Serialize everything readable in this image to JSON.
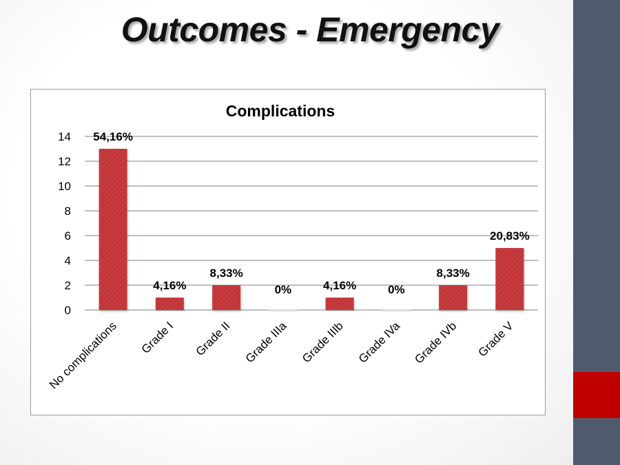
{
  "slide": {
    "title": "Outcomes - Emergency",
    "colors": {
      "sidebar": "#4f5b6d",
      "accent": "#c00000",
      "bar": "#c0393b"
    }
  },
  "chart_data": {
    "type": "bar",
    "title": "Complications",
    "categories": [
      "No complications",
      "Grade I",
      "Grade II",
      "Grade IIIa",
      "Grade IIIb",
      "Grade IVa",
      "Grade IVb",
      "Grade V"
    ],
    "values": [
      13,
      1,
      2,
      0,
      1,
      0,
      2,
      5
    ],
    "data_labels": [
      "54,16%",
      "4,16%",
      "8,33%",
      "0%",
      "4,16%",
      "0%",
      "8,33%",
      "20,83%"
    ],
    "ylim": [
      0,
      14
    ],
    "yticks": [
      0,
      2,
      4,
      6,
      8,
      10,
      12,
      14
    ],
    "grid": true,
    "legend": "none",
    "xlabel": "",
    "ylabel": ""
  }
}
